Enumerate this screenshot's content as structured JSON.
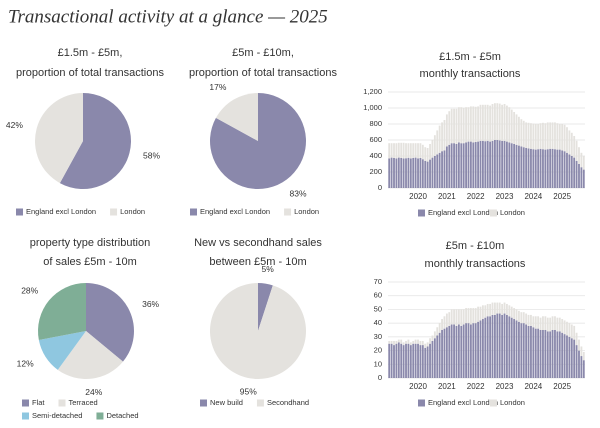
{
  "title": "Transactional activity at a glance — 2025",
  "chart_data": [
    {
      "type": "pie",
      "title": [
        "£1.5m - £5m,",
        "proportion of total transactions"
      ],
      "categories": [
        "England excl London",
        "London"
      ],
      "values": [
        58,
        42
      ],
      "value_labels": [
        "58%",
        "42%"
      ],
      "colors": [
        "#8a88ab",
        "#e4e2de"
      ]
    },
    {
      "type": "pie",
      "title": [
        "£5m - £10m,",
        "proportion of total transactions"
      ],
      "categories": [
        "England excl London",
        "London"
      ],
      "values": [
        83,
        17
      ],
      "value_labels": [
        "83%",
        "17%"
      ],
      "colors": [
        "#8a88ab",
        "#e4e2de"
      ]
    },
    {
      "type": "bar",
      "stacked": true,
      "title": [
        "£1.5m - £5m",
        "monthly transactions"
      ],
      "categories": [
        null,
        null,
        null,
        null,
        null,
        null,
        null,
        null,
        null,
        null,
        null,
        null,
        "2020",
        null,
        null,
        null,
        null,
        null,
        null,
        null,
        null,
        null,
        null,
        null,
        "2021",
        null,
        null,
        null,
        null,
        null,
        null,
        null,
        null,
        null,
        null,
        null,
        "2022",
        null,
        null,
        null,
        null,
        null,
        null,
        null,
        null,
        null,
        null,
        null,
        "2023",
        null,
        null,
        null,
        null,
        null,
        null,
        null,
        null,
        null,
        null,
        null,
        "2024",
        null,
        null,
        null,
        null,
        null,
        null,
        null,
        null,
        null,
        null,
        null,
        "2025",
        null,
        null,
        null,
        null,
        null,
        null,
        null,
        null,
        null
      ],
      "series": [
        {
          "name": "England excl London",
          "color": "#8a88ab",
          "values": [
            370,
            380,
            375,
            370,
            380,
            375,
            370,
            372,
            378,
            370,
            375,
            380,
            370,
            375,
            360,
            340,
            330,
            355,
            380,
            400,
            420,
            440,
            460,
            470,
            520,
            540,
            560,
            560,
            550,
            570,
            560,
            560,
            570,
            580,
            580,
            570,
            575,
            580,
            590,
            590,
            585,
            590,
            580,
            590,
            600,
            600,
            595,
            590,
            590,
            580,
            570,
            560,
            550,
            540,
            530,
            520,
            510,
            500,
            495,
            490,
            485,
            480,
            485,
            490,
            485,
            480,
            485,
            490,
            490,
            485,
            480,
            480,
            470,
            460,
            440,
            420,
            400,
            380,
            340,
            300,
            260,
            230
          ]
        },
        {
          "name": "London",
          "color": "#e4e2de",
          "values": [
            190,
            180,
            185,
            190,
            185,
            190,
            195,
            188,
            182,
            190,
            185,
            180,
            190,
            185,
            180,
            170,
            170,
            195,
            220,
            260,
            300,
            340,
            360,
            380,
            400,
            420,
            430,
            430,
            440,
            440,
            450,
            440,
            440,
            430,
            440,
            450,
            440,
            440,
            450,
            450,
            455,
            450,
            450,
            460,
            460,
            460,
            460,
            450,
            460,
            450,
            440,
            420,
            400,
            380,
            360,
            340,
            330,
            320,
            320,
            320,
            320,
            320,
            315,
            320,
            330,
            330,
            335,
            330,
            330,
            335,
            330,
            320,
            330,
            330,
            320,
            300,
            290,
            270,
            250,
            210,
            180,
            170
          ]
        }
      ],
      "ylim": [
        0,
        1200
      ],
      "yticks": [
        0,
        200,
        400,
        600,
        800,
        {
          "value": 1000,
          "label": "1,000"
        },
        {
          "value": 1200,
          "label": "1,200"
        }
      ],
      "grid": true
    },
    {
      "type": "pie",
      "title": [
        "property type distribution",
        "of sales £5m - 10m"
      ],
      "categories": [
        "Flat",
        "Terraced",
        "Semi-detached",
        "Detached"
      ],
      "values": [
        36,
        24,
        12,
        28
      ],
      "value_labels": [
        "36%",
        "24%",
        "12%",
        "28%"
      ],
      "colors": [
        "#8a88ab",
        "#e4e2de",
        "#8fc7e0",
        "#7fae96"
      ]
    },
    {
      "type": "pie",
      "title": [
        "New vs secondhand sales",
        "between £5m - 10m"
      ],
      "categories": [
        "New build",
        "Secondhand"
      ],
      "values": [
        5,
        95
      ],
      "value_labels": [
        "5%",
        "95%"
      ],
      "colors": [
        "#8a88ab",
        "#e4e2de"
      ]
    },
    {
      "type": "bar",
      "stacked": true,
      "title": [
        "£5m - £10m",
        "monthly transactions"
      ],
      "categories": [
        null,
        null,
        null,
        null,
        null,
        null,
        null,
        null,
        null,
        null,
        null,
        null,
        "2020",
        null,
        null,
        null,
        null,
        null,
        null,
        null,
        null,
        null,
        null,
        null,
        "2021",
        null,
        null,
        null,
        null,
        null,
        null,
        null,
        null,
        null,
        null,
        null,
        "2022",
        null,
        null,
        null,
        null,
        null,
        null,
        null,
        null,
        null,
        null,
        null,
        "2023",
        null,
        null,
        null,
        null,
        null,
        null,
        null,
        null,
        null,
        null,
        null,
        "2024",
        null,
        null,
        null,
        null,
        null,
        null,
        null,
        null,
        null,
        null,
        null,
        "2025",
        null,
        null,
        null,
        null,
        null,
        null,
        null,
        null,
        null
      ],
      "series": [
        {
          "name": "England excl London",
          "color": "#8a88ab",
          "values": [
            25,
            25,
            24,
            25,
            26,
            25,
            24,
            25,
            25,
            24,
            25,
            25,
            25,
            24,
            24,
            22,
            23,
            25,
            27,
            29,
            31,
            33,
            35,
            36,
            37,
            38,
            39,
            39,
            38,
            39,
            38,
            39,
            40,
            40,
            39,
            40,
            40,
            41,
            42,
            43,
            44,
            45,
            45,
            46,
            46,
            47,
            47,
            46,
            47,
            46,
            45,
            44,
            43,
            42,
            41,
            40,
            40,
            39,
            38,
            38,
            37,
            36,
            36,
            35,
            35,
            35,
            34,
            34,
            35,
            35,
            34,
            34,
            33,
            32,
            31,
            30,
            29,
            28,
            24,
            20,
            16,
            13
          ]
        },
        {
          "name": "London",
          "color": "#e4e2de",
          "values": [
            2,
            2,
            3,
            2,
            2,
            3,
            2,
            2,
            3,
            2,
            2,
            3,
            3,
            3,
            3,
            3,
            3,
            4,
            4,
            5,
            6,
            7,
            8,
            9,
            10,
            10,
            11,
            11,
            12,
            11,
            12,
            11,
            11,
            11,
            12,
            11,
            11,
            11,
            10,
            10,
            9,
            9,
            9,
            9,
            9,
            8,
            8,
            8,
            8,
            8,
            8,
            8,
            8,
            8,
            8,
            8,
            8,
            8,
            8,
            8,
            8,
            9,
            9,
            9,
            10,
            10,
            10,
            10,
            10,
            10,
            10,
            10,
            10,
            10,
            10,
            10,
            10,
            10,
            9,
            8,
            7,
            6
          ]
        }
      ],
      "ylim": [
        0,
        70
      ],
      "yticks": [
        0,
        10,
        20,
        30,
        40,
        50,
        60,
        70
      ],
      "grid": true
    }
  ]
}
